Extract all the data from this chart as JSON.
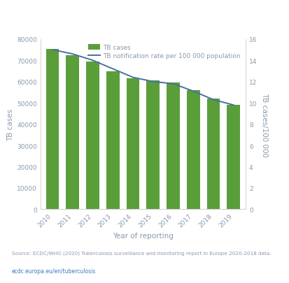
{
  "years": [
    2010,
    2011,
    2012,
    2013,
    2014,
    2015,
    2016,
    2017,
    2018,
    2019
  ],
  "tb_cases": [
    75500,
    72500,
    69500,
    65000,
    61500,
    60500,
    59500,
    56000,
    52000,
    49000
  ],
  "tb_rate": [
    15.0,
    14.6,
    14.0,
    13.2,
    12.4,
    12.0,
    11.8,
    11.1,
    10.3,
    9.8
  ],
  "bar_color": "#5a9e3a",
  "line_color": "#4a6fa5",
  "ylabel_left": "TB cases",
  "ylabel_right": "TB cases/100 000",
  "xlabel": "Year of reporting",
  "legend_bar": "TB cases",
  "legend_line": "TB notification rate per 100 000 population",
  "ylim_left": [
    0,
    80000
  ],
  "ylim_right": [
    0,
    16
  ],
  "yticks_left": [
    0,
    10000,
    20000,
    30000,
    40000,
    50000,
    60000,
    70000,
    80000
  ],
  "yticks_right": [
    0,
    2,
    4,
    6,
    8,
    10,
    12,
    14,
    16
  ],
  "background_color": "#ffffff",
  "plot_bg_color": "#ffffff",
  "source_text": "Source: ECDC/WHO (2020) Tuberculosis surveillance and monitoring report in Europe 2020-2018 data.",
  "link_text": "ecdc.europa.eu/en/tuberculosis",
  "link_color": "#3a7abf",
  "source_color": "#8a9aaa",
  "tick_color": "#8a9aaa",
  "label_color": "#8a9aaa",
  "spine_color": "#cccccc",
  "bar_width": 0.65
}
